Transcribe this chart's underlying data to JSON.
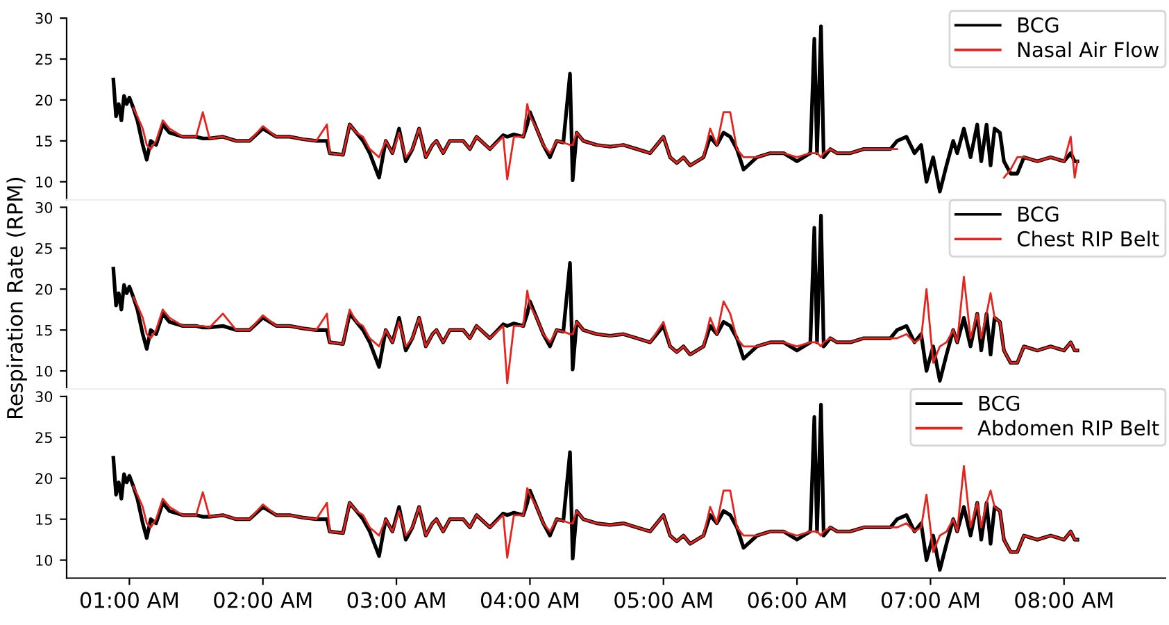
{
  "chart_data": [
    {
      "type": "line",
      "xlim": [
        0.53,
        8.76
      ],
      "ylim": [
        7.8,
        30
      ],
      "yticks": [
        10,
        15,
        20,
        25,
        30
      ],
      "tick_labels": "y",
      "legend": "top right",
      "grid": false,
      "x": [
        0.88,
        0.9,
        0.92,
        0.94,
        0.96,
        0.98,
        1.0,
        1.03,
        1.06,
        1.1,
        1.13,
        1.16,
        1.2,
        1.25,
        1.3,
        1.4,
        1.5,
        1.55,
        1.6,
        1.7,
        1.8,
        1.9,
        2.0,
        2.1,
        2.2,
        2.3,
        2.4,
        2.48,
        2.5,
        2.6,
        2.65,
        2.7,
        2.75,
        2.8,
        2.87,
        2.92,
        2.97,
        3.02,
        3.07,
        3.12,
        3.17,
        3.22,
        3.27,
        3.3,
        3.35,
        3.4,
        3.5,
        3.55,
        3.6,
        3.7,
        3.8,
        3.83,
        3.88,
        3.95,
        3.98,
        4.0,
        4.05,
        4.1,
        4.15,
        4.2,
        4.25,
        4.3,
        4.32,
        4.35,
        4.4,
        4.5,
        4.6,
        4.7,
        4.8,
        4.9,
        5.0,
        5.05,
        5.1,
        5.15,
        5.2,
        5.3,
        5.35,
        5.4,
        5.45,
        5.5,
        5.55,
        5.6,
        5.7,
        5.8,
        5.9,
        6.0,
        6.1,
        6.13,
        6.15,
        6.18,
        6.2,
        6.25,
        6.3,
        6.4,
        6.5,
        6.6,
        6.7,
        6.75,
        6.82,
        6.88,
        6.93,
        6.97,
        7.02,
        7.07,
        7.12,
        7.17,
        7.2,
        7.25,
        7.3,
        7.35,
        7.38,
        7.42,
        7.45,
        7.48,
        7.52,
        7.55,
        7.6,
        7.65,
        7.7,
        7.8,
        7.9,
        8.0,
        8.05,
        8.08,
        8.1
      ],
      "series": [
        {
          "name": "BCG",
          "color": "#000000",
          "values": [
            22.5,
            18,
            19.5,
            17.5,
            20.5,
            19.5,
            20.3,
            19,
            17.5,
            14.5,
            12.7,
            15,
            14.5,
            17,
            16,
            15.5,
            15.5,
            15.3,
            15.3,
            15.5,
            15,
            15,
            16.5,
            15.5,
            15.5,
            15.2,
            15,
            15,
            13.5,
            13.3,
            17,
            16,
            15,
            13.5,
            10.5,
            15,
            13.5,
            16.5,
            12.5,
            14,
            16.5,
            13,
            14.5,
            15,
            13.5,
            15,
            15,
            14,
            15.5,
            14,
            15.7,
            15.5,
            15.8,
            15.5,
            17,
            18.5,
            16.5,
            14.5,
            13,
            15,
            14.8,
            23.2,
            10.2,
            16,
            15,
            14.5,
            14.3,
            14.5,
            14,
            13.5,
            15.5,
            13,
            12.3,
            13,
            12,
            13,
            15.5,
            14.5,
            16,
            15.5,
            14,
            11.5,
            13,
            13.5,
            13.5,
            12.5,
            13.5,
            27.5,
            13.5,
            29,
            13,
            14,
            13.5,
            13.5,
            14,
            14,
            14,
            15,
            15.5,
            13.5,
            14.5,
            10,
            13,
            8.8,
            12,
            15,
            13.5,
            16.5,
            13,
            17,
            12.5,
            17,
            12,
            16.5,
            16,
            12.5,
            11,
            11,
            13,
            12.5,
            13,
            12.5,
            13.5,
            12.5,
            12.5
          ]
        },
        {
          "name": "Nasal Air Flow",
          "color": "#e8221c",
          "values": [
            null,
            null,
            null,
            null,
            null,
            null,
            null,
            19,
            18,
            16.5,
            14.5,
            14,
            15,
            17.5,
            16.5,
            15.5,
            15.5,
            18.5,
            15.3,
            15.5,
            15,
            15,
            16.8,
            15.5,
            15.5,
            15.2,
            15,
            17,
            13.5,
            13.3,
            17,
            16,
            15.5,
            14,
            13,
            15,
            13.5,
            16,
            13,
            14,
            16.5,
            13,
            14.5,
            15,
            13.5,
            15,
            15,
            14,
            15.5,
            14,
            15.5,
            10.3,
            15.5,
            15.5,
            19.5,
            18,
            16.5,
            14.5,
            13.5,
            15,
            14.8,
            14.5,
            14.5,
            16,
            15,
            14.5,
            14.3,
            14.5,
            14,
            13.5,
            15.5,
            13,
            12.3,
            13,
            12,
            13,
            16.5,
            14.5,
            18.5,
            18.5,
            14,
            13,
            13,
            13.5,
            13.5,
            13,
            13.5,
            13.5,
            13.5,
            13,
            13.5,
            14,
            13.5,
            13.5,
            14,
            14,
            14,
            14,
            null,
            null,
            null,
            null,
            null,
            null,
            null,
            null,
            null,
            null,
            null,
            null,
            null,
            null,
            null,
            null,
            null,
            10.5,
            11.5,
            13,
            13,
            12.5,
            13,
            12.5,
            15.5,
            10.5,
            12.5
          ]
        }
      ]
    },
    {
      "type": "line",
      "xlim": [
        0.53,
        8.76
      ],
      "ylim": [
        7.8,
        30
      ],
      "yticks": [
        10,
        15,
        20,
        25,
        30
      ],
      "tick_labels": "y",
      "legend": "top right",
      "grid": false,
      "ylabel": "Respiration Rate (RPM)",
      "x": [
        0.88,
        0.9,
        0.92,
        0.94,
        0.96,
        0.98,
        1.0,
        1.03,
        1.06,
        1.1,
        1.13,
        1.16,
        1.2,
        1.25,
        1.3,
        1.4,
        1.5,
        1.55,
        1.6,
        1.7,
        1.8,
        1.9,
        2.0,
        2.1,
        2.2,
        2.3,
        2.4,
        2.48,
        2.5,
        2.6,
        2.65,
        2.7,
        2.75,
        2.8,
        2.87,
        2.92,
        2.97,
        3.02,
        3.07,
        3.12,
        3.17,
        3.22,
        3.27,
        3.3,
        3.35,
        3.4,
        3.5,
        3.55,
        3.6,
        3.7,
        3.8,
        3.83,
        3.88,
        3.95,
        3.98,
        4.0,
        4.05,
        4.1,
        4.15,
        4.2,
        4.25,
        4.3,
        4.32,
        4.35,
        4.4,
        4.5,
        4.6,
        4.7,
        4.8,
        4.9,
        5.0,
        5.05,
        5.1,
        5.15,
        5.2,
        5.3,
        5.35,
        5.4,
        5.45,
        5.5,
        5.55,
        5.6,
        5.7,
        5.8,
        5.9,
        6.0,
        6.1,
        6.13,
        6.15,
        6.18,
        6.2,
        6.25,
        6.3,
        6.4,
        6.5,
        6.6,
        6.7,
        6.75,
        6.82,
        6.88,
        6.93,
        6.97,
        7.02,
        7.07,
        7.12,
        7.17,
        7.2,
        7.25,
        7.3,
        7.35,
        7.38,
        7.42,
        7.45,
        7.48,
        7.52,
        7.55,
        7.6,
        7.65,
        7.7,
        7.8,
        7.9,
        8.0,
        8.05,
        8.08,
        8.1
      ],
      "series": [
        {
          "name": "BCG",
          "color": "#000000",
          "values": [
            22.5,
            18,
            19.5,
            17.5,
            20.5,
            19.5,
            20.3,
            19,
            17.5,
            14.5,
            12.7,
            15,
            14.5,
            17,
            16,
            15.5,
            15.5,
            15.3,
            15.3,
            15.5,
            15,
            15,
            16.5,
            15.5,
            15.5,
            15.2,
            15,
            15,
            13.5,
            13.3,
            17,
            16,
            15,
            13.5,
            10.5,
            15,
            13.5,
            16.5,
            12.5,
            14,
            16.5,
            13,
            14.5,
            15,
            13.5,
            15,
            15,
            14,
            15.5,
            14,
            15.7,
            15.5,
            15.8,
            15.5,
            17,
            18.5,
            16.5,
            14.5,
            13,
            15,
            14.8,
            23.2,
            10.2,
            16,
            15,
            14.5,
            14.3,
            14.5,
            14,
            13.5,
            15.5,
            13,
            12.3,
            13,
            12,
            13,
            15.5,
            14.5,
            16,
            15.5,
            14,
            11.5,
            13,
            13.5,
            13.5,
            12.5,
            13.5,
            27.5,
            13.5,
            29,
            13,
            14,
            13.5,
            13.5,
            14,
            14,
            14,
            15,
            15.5,
            13.5,
            14.5,
            10,
            13,
            8.8,
            12,
            15,
            13.5,
            16.5,
            13,
            17,
            12.5,
            17,
            12,
            16.5,
            16,
            12.5,
            11,
            11,
            13,
            12.5,
            13,
            12.5,
            13.5,
            12.5,
            12.5
          ]
        },
        {
          "name": "Chest RIP Belt",
          "color": "#e8221c",
          "values": [
            null,
            null,
            null,
            null,
            null,
            null,
            null,
            19,
            18,
            16.5,
            14.5,
            14,
            15,
            17.5,
            16.5,
            15.5,
            15.5,
            15.5,
            15.3,
            17,
            15,
            15,
            16.8,
            15.5,
            15.5,
            15.2,
            15,
            17,
            13.5,
            13.3,
            17.5,
            16,
            15.5,
            14,
            13,
            15,
            13.5,
            16,
            13,
            14,
            16.5,
            13,
            14.5,
            15,
            13.5,
            15,
            15,
            14,
            15.5,
            14,
            15.5,
            8.5,
            15.5,
            15.5,
            19.8,
            18,
            16.5,
            14.5,
            13.5,
            15,
            14.8,
            14.5,
            14.5,
            16,
            15,
            14.5,
            14.3,
            14.5,
            14,
            13.5,
            16,
            13,
            12.3,
            13,
            12,
            13,
            16.5,
            14.5,
            18.5,
            17,
            14,
            13,
            13,
            13.5,
            13.5,
            13,
            13.5,
            13.5,
            13.5,
            13,
            13.5,
            14,
            13.5,
            13.5,
            14,
            14,
            14,
            14,
            14.5,
            13.5,
            14,
            20,
            11,
            13,
            13.5,
            15,
            13.5,
            21.5,
            14,
            17,
            14,
            17,
            19.5,
            16.5,
            16,
            12.5,
            11,
            11,
            13,
            12.5,
            13,
            12.5,
            13.5,
            12.5,
            12.5
          ]
        }
      ]
    },
    {
      "type": "line",
      "xlim": [
        0.53,
        8.76
      ],
      "ylim": [
        7.8,
        30
      ],
      "yticks": [
        10,
        15,
        20,
        25,
        30
      ],
      "xticks": [
        {
          "value": 1,
          "label": "01:00 AM"
        },
        {
          "value": 2,
          "label": "02:00 AM"
        },
        {
          "value": 3,
          "label": "03:00 AM"
        },
        {
          "value": 4,
          "label": "04:00 AM"
        },
        {
          "value": 5,
          "label": "05:00 AM"
        },
        {
          "value": 6,
          "label": "06:00 AM"
        },
        {
          "value": 7,
          "label": "07:00 AM"
        },
        {
          "value": 8,
          "label": "08:00 AM"
        }
      ],
      "legend": "top right",
      "grid": false,
      "x": [
        0.88,
        0.9,
        0.92,
        0.94,
        0.96,
        0.98,
        1.0,
        1.03,
        1.06,
        1.1,
        1.13,
        1.16,
        1.2,
        1.25,
        1.3,
        1.4,
        1.5,
        1.55,
        1.6,
        1.7,
        1.8,
        1.9,
        2.0,
        2.1,
        2.2,
        2.3,
        2.4,
        2.48,
        2.5,
        2.6,
        2.65,
        2.7,
        2.75,
        2.8,
        2.87,
        2.92,
        2.97,
        3.02,
        3.07,
        3.12,
        3.17,
        3.22,
        3.27,
        3.3,
        3.35,
        3.4,
        3.5,
        3.55,
        3.6,
        3.7,
        3.8,
        3.83,
        3.88,
        3.95,
        3.98,
        4.0,
        4.05,
        4.1,
        4.15,
        4.2,
        4.25,
        4.3,
        4.32,
        4.35,
        4.4,
        4.5,
        4.6,
        4.7,
        4.8,
        4.9,
        5.0,
        5.05,
        5.1,
        5.15,
        5.2,
        5.3,
        5.35,
        5.4,
        5.45,
        5.5,
        5.55,
        5.6,
        5.7,
        5.8,
        5.9,
        6.0,
        6.1,
        6.13,
        6.15,
        6.18,
        6.2,
        6.25,
        6.3,
        6.4,
        6.5,
        6.6,
        6.7,
        6.75,
        6.82,
        6.88,
        6.93,
        6.97,
        7.02,
        7.07,
        7.12,
        7.17,
        7.2,
        7.25,
        7.3,
        7.35,
        7.38,
        7.42,
        7.45,
        7.48,
        7.52,
        7.55,
        7.6,
        7.65,
        7.7,
        7.8,
        7.9,
        8.0,
        8.05,
        8.08,
        8.1
      ],
      "series": [
        {
          "name": "BCG",
          "color": "#000000",
          "values": [
            22.5,
            18,
            19.5,
            17.5,
            20.5,
            19.5,
            20.3,
            19,
            17.5,
            14.5,
            12.7,
            15,
            14.5,
            17,
            16,
            15.5,
            15.5,
            15.3,
            15.3,
            15.5,
            15,
            15,
            16.5,
            15.5,
            15.5,
            15.2,
            15,
            15,
            13.5,
            13.3,
            17,
            16,
            15,
            13.5,
            10.5,
            15,
            13.5,
            16.5,
            12.5,
            14,
            16.5,
            13,
            14.5,
            15,
            13.5,
            15,
            15,
            14,
            15.5,
            14,
            15.7,
            15.5,
            15.8,
            15.5,
            17,
            18.5,
            16.5,
            14.5,
            13,
            15,
            14.8,
            23.2,
            10.2,
            16,
            15,
            14.5,
            14.3,
            14.5,
            14,
            13.5,
            15.5,
            13,
            12.3,
            13,
            12,
            13,
            15.5,
            14.5,
            16,
            15.5,
            14,
            11.5,
            13,
            13.5,
            13.5,
            12.5,
            13.5,
            27.5,
            13.5,
            29,
            13,
            14,
            13.5,
            13.5,
            14,
            14,
            14,
            15,
            15.5,
            13.5,
            14.5,
            10,
            13,
            8.8,
            12,
            15,
            13.5,
            16.5,
            13,
            17,
            12.5,
            17,
            12,
            16.5,
            16,
            12.5,
            11,
            11,
            13,
            12.5,
            13,
            12.5,
            13.5,
            12.5,
            12.5
          ]
        },
        {
          "name": "Abdomen RIP Belt",
          "color": "#e8221c",
          "values": [
            null,
            null,
            null,
            null,
            null,
            null,
            null,
            19,
            18,
            16.5,
            14.5,
            14,
            15,
            17.5,
            16.5,
            15.5,
            15.5,
            18.3,
            15.3,
            15.5,
            15,
            15,
            16.8,
            15.5,
            15.5,
            15.2,
            15,
            17,
            13.5,
            13.3,
            17,
            16,
            15.5,
            14,
            13,
            15,
            13.5,
            16,
            13,
            14,
            16.5,
            13,
            14.5,
            15,
            13.5,
            15,
            15,
            14,
            15.5,
            14,
            15.5,
            10.3,
            15.5,
            15.5,
            18.8,
            18,
            16.5,
            14.5,
            13.5,
            15,
            14.8,
            14.5,
            14.5,
            16,
            15,
            14.5,
            14.3,
            14.5,
            14,
            13.5,
            15.5,
            13,
            12.3,
            13,
            12,
            13,
            16.5,
            14.5,
            18.5,
            18.5,
            14,
            13,
            13,
            13.5,
            13.5,
            13,
            13.5,
            13.5,
            13.5,
            13,
            13.5,
            14,
            13.5,
            13.5,
            14,
            14,
            14,
            14,
            14.5,
            13.5,
            14,
            18,
            11,
            13,
            13.5,
            15,
            13.5,
            21.5,
            14,
            17,
            14,
            17,
            18.5,
            16.5,
            16,
            12.5,
            11,
            11,
            13,
            12.5,
            13,
            12.5,
            13.5,
            12.5,
            12.5
          ]
        }
      ]
    }
  ]
}
